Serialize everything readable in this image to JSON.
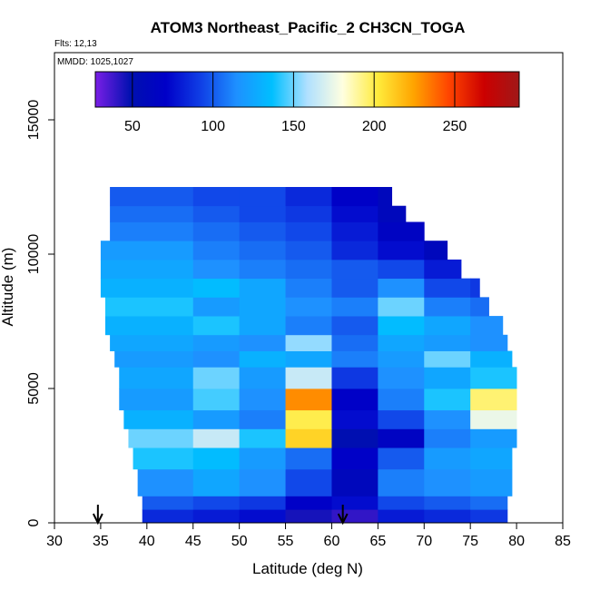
{
  "chart_data": {
    "type": "heatmap",
    "title": "ATOM3 Northeast_Pacific_2 CH3CN_TOGA",
    "annotations": {
      "flights": "Flts: 12,13",
      "dates": "MMDD: 1025,1027"
    },
    "xlabel": "Latitude (deg N)",
    "ylabel": "Altitude (m)",
    "xlim": [
      30,
      85
    ],
    "ylim": [
      0,
      17500
    ],
    "x_ticks": [
      30,
      35,
      40,
      45,
      50,
      55,
      60,
      65,
      70,
      75,
      80,
      85
    ],
    "y_ticks": [
      0,
      5000,
      10000,
      15000
    ],
    "grid": false,
    "colorbar": {
      "range": [
        27,
        290
      ],
      "ticks": [
        50,
        100,
        150,
        200,
        250
      ],
      "colors": [
        "#7a1fe6",
        "#0010b0",
        "#0000c8",
        "#1040e6",
        "#1e90ff",
        "#00bfff",
        "#b0e0ff",
        "#ffffe0",
        "#ffeb3b",
        "#ffa500",
        "#ff4500",
        "#cc0000",
        "#a01818"
      ]
    },
    "markers": [
      {
        "latitude": 34.7,
        "label": ""
      },
      {
        "latitude": 61.2,
        "label": ""
      }
    ],
    "altitude_bands": [
      {
        "alt_low": 0,
        "alt_high": 500,
        "lat_min": 39.5,
        "lat_max": 79,
        "cells": [
          [
            39.5,
            85
          ],
          [
            45,
            80
          ],
          [
            50,
            75
          ],
          [
            55,
            45
          ],
          [
            60,
            40
          ],
          [
            65,
            80
          ],
          [
            70,
            85
          ],
          [
            75,
            90
          ]
        ]
      },
      {
        "alt_low": 500,
        "alt_high": 1000,
        "lat_min": 39.5,
        "lat_max": 79,
        "cells": [
          [
            39.5,
            100
          ],
          [
            45,
            95
          ],
          [
            50,
            90
          ],
          [
            55,
            70
          ],
          [
            60,
            75
          ],
          [
            65,
            95
          ],
          [
            70,
            100
          ],
          [
            75,
            105
          ]
        ]
      },
      {
        "alt_low": 1000,
        "alt_high": 2000,
        "lat_min": 39,
        "lat_max": 79.5,
        "cells": [
          [
            39,
            115
          ],
          [
            45,
            125
          ],
          [
            50,
            115
          ],
          [
            55,
            95
          ],
          [
            60,
            60
          ],
          [
            65,
            110
          ],
          [
            70,
            115
          ],
          [
            75,
            120
          ]
        ]
      },
      {
        "alt_low": 2000,
        "alt_high": 2800,
        "lat_min": 38.5,
        "lat_max": 79.5,
        "cells": [
          [
            38.5,
            140
          ],
          [
            45,
            135
          ],
          [
            50,
            120
          ],
          [
            55,
            105
          ],
          [
            60,
            70
          ],
          [
            65,
            100
          ],
          [
            70,
            120
          ],
          [
            75,
            125
          ]
        ]
      },
      {
        "alt_low": 2800,
        "alt_high": 3500,
        "lat_min": 38,
        "lat_max": 80,
        "cells": [
          [
            38,
            150
          ],
          [
            45,
            165
          ],
          [
            50,
            140
          ],
          [
            55,
            210
          ],
          [
            60,
            50
          ],
          [
            65,
            65
          ],
          [
            70,
            110
          ],
          [
            75,
            120
          ]
        ]
      },
      {
        "alt_low": 3500,
        "alt_high": 4200,
        "lat_min": 37.5,
        "lat_max": 80,
        "cells": [
          [
            37.5,
            130
          ],
          [
            45,
            120
          ],
          [
            50,
            110
          ],
          [
            55,
            200
          ],
          [
            60,
            75
          ],
          [
            65,
            95
          ],
          [
            70,
            115
          ],
          [
            75,
            175
          ]
        ]
      },
      {
        "alt_low": 4200,
        "alt_high": 5000,
        "lat_min": 37,
        "lat_max": 80,
        "cells": [
          [
            37,
            120
          ],
          [
            45,
            145
          ],
          [
            50,
            115
          ],
          [
            55,
            230
          ],
          [
            60,
            70
          ],
          [
            65,
            110
          ],
          [
            70,
            140
          ],
          [
            75,
            195
          ]
        ]
      },
      {
        "alt_low": 5000,
        "alt_high": 5800,
        "lat_min": 37,
        "lat_max": 80,
        "cells": [
          [
            37,
            125
          ],
          [
            45,
            150
          ],
          [
            50,
            120
          ],
          [
            55,
            165
          ],
          [
            60,
            90
          ],
          [
            65,
            115
          ],
          [
            70,
            125
          ],
          [
            75,
            140
          ]
        ]
      },
      {
        "alt_low": 5800,
        "alt_high": 6400,
        "lat_min": 36.5,
        "lat_max": 79.5,
        "cells": [
          [
            36.5,
            120
          ],
          [
            45,
            115
          ],
          [
            50,
            130
          ],
          [
            55,
            125
          ],
          [
            60,
            110
          ],
          [
            65,
            120
          ],
          [
            70,
            150
          ],
          [
            75,
            130
          ]
        ]
      },
      {
        "alt_low": 6400,
        "alt_high": 7000,
        "lat_min": 36,
        "lat_max": 79,
        "cells": [
          [
            36,
            125
          ],
          [
            45,
            120
          ],
          [
            50,
            115
          ],
          [
            55,
            155
          ],
          [
            60,
            105
          ],
          [
            65,
            125
          ],
          [
            70,
            120
          ],
          [
            75,
            115
          ]
        ]
      },
      {
        "alt_low": 7000,
        "alt_high": 7700,
        "lat_min": 35.5,
        "lat_max": 78.5,
        "cells": [
          [
            35.5,
            130
          ],
          [
            45,
            140
          ],
          [
            50,
            125
          ],
          [
            55,
            110
          ],
          [
            60,
            100
          ],
          [
            65,
            135
          ],
          [
            70,
            125
          ],
          [
            75,
            115
          ]
        ]
      },
      {
        "alt_low": 7700,
        "alt_high": 8400,
        "lat_min": 35.5,
        "lat_max": 77,
        "cells": [
          [
            35.5,
            140
          ],
          [
            45,
            120
          ],
          [
            50,
            125
          ],
          [
            55,
            115
          ],
          [
            60,
            110
          ],
          [
            65,
            150
          ],
          [
            70,
            110
          ],
          [
            75,
            105
          ]
        ]
      },
      {
        "alt_low": 8400,
        "alt_high": 9100,
        "lat_min": 35,
        "lat_max": 76,
        "cells": [
          [
            35,
            130
          ],
          [
            45,
            135
          ],
          [
            50,
            125
          ],
          [
            55,
            110
          ],
          [
            60,
            100
          ],
          [
            65,
            115
          ],
          [
            70,
            95
          ],
          [
            75,
            90
          ]
        ]
      },
      {
        "alt_low": 9100,
        "alt_high": 9800,
        "lat_min": 35,
        "lat_max": 74,
        "cells": [
          [
            35,
            125
          ],
          [
            45,
            115
          ],
          [
            50,
            110
          ],
          [
            55,
            105
          ],
          [
            60,
            100
          ],
          [
            65,
            95
          ],
          [
            70,
            80
          ]
        ]
      },
      {
        "alt_low": 9800,
        "alt_high": 10500,
        "lat_min": 35,
        "lat_max": 72.5,
        "cells": [
          [
            35,
            120
          ],
          [
            45,
            110
          ],
          [
            50,
            105
          ],
          [
            55,
            100
          ],
          [
            60,
            85
          ],
          [
            65,
            75
          ],
          [
            70,
            60
          ]
        ]
      },
      {
        "alt_low": 10500,
        "alt_high": 11200,
        "lat_min": 36,
        "lat_max": 70,
        "cells": [
          [
            36,
            110
          ],
          [
            45,
            105
          ],
          [
            50,
            100
          ],
          [
            55,
            95
          ],
          [
            60,
            80
          ],
          [
            65,
            65
          ]
        ]
      },
      {
        "alt_low": 11200,
        "alt_high": 11800,
        "lat_min": 36,
        "lat_max": 68,
        "cells": [
          [
            36,
            105
          ],
          [
            45,
            100
          ],
          [
            50,
            95
          ],
          [
            55,
            90
          ],
          [
            60,
            75
          ],
          [
            65,
            60
          ]
        ]
      },
      {
        "alt_low": 11800,
        "alt_high": 12500,
        "lat_min": 36,
        "lat_max": 66.5,
        "cells": [
          [
            36,
            100
          ],
          [
            45,
            95
          ],
          [
            50,
            95
          ],
          [
            55,
            85
          ],
          [
            60,
            70
          ],
          [
            65,
            60
          ]
        ]
      }
    ]
  }
}
